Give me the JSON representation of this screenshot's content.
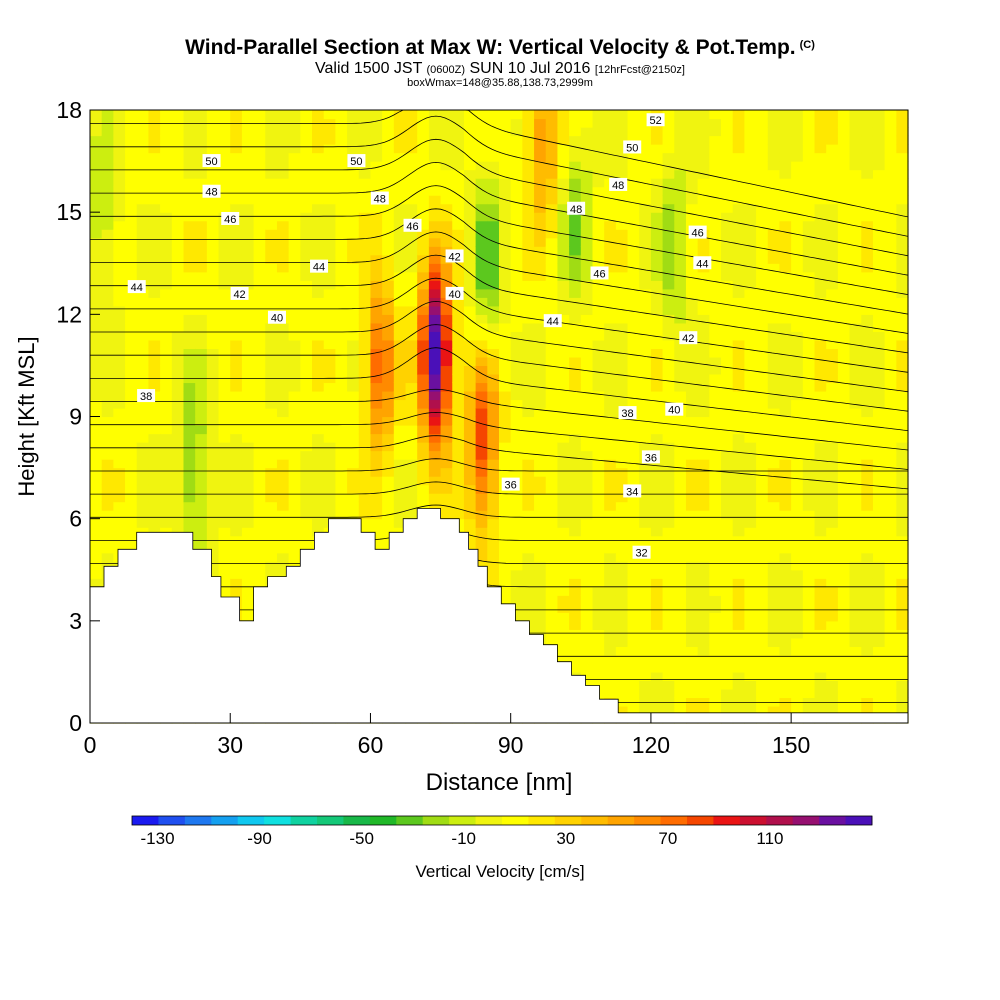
{
  "header": {
    "title": "Wind-Parallel Section at Max W: Vertical Velocity & Pot.Temp.",
    "copyright": "(C)",
    "valid_prefix": "Valid 1500 JST ",
    "valid_z": "(0600Z)",
    "valid_date": " SUN 10 Jul 2016 ",
    "fcst": "[12hrFcst@2150z]",
    "box_info": "boxWmax=148@35.88,138.73,2999m"
  },
  "chart_data": {
    "type": "heatmap",
    "title": "Wind-Parallel Section at Max W: Vertical Velocity & Pot.Temp.",
    "xlabel": "Distance [nm]",
    "ylabel": "Height [Kft MSL]",
    "xlim": [
      0,
      175
    ],
    "ylim": [
      0,
      18
    ],
    "x_ticks": [
      "0",
      "30",
      "60",
      "90",
      "120",
      "150"
    ],
    "x_tick_values": [
      0,
      30,
      60,
      90,
      120,
      150
    ],
    "y_ticks": [
      "0",
      "3",
      "6",
      "9",
      "12",
      "15",
      "18"
    ],
    "y_tick_values": [
      0,
      3,
      6,
      9,
      12,
      15,
      18
    ],
    "colorbar": {
      "label": "Vertical Velocity [cm/s]",
      "tick_labels": [
        "-130",
        "-90",
        "-50",
        "-10",
        "30",
        "70",
        "110"
      ],
      "tick_values": [
        -130,
        -90,
        -50,
        -10,
        30,
        70,
        110
      ],
      "range": [
        -140,
        150
      ],
      "colors": [
        "#1a1af0",
        "#1f4ff0",
        "#1e78f0",
        "#14a0f0",
        "#10c8f0",
        "#10e0e0",
        "#10d2a0",
        "#14c878",
        "#18b848",
        "#20b828",
        "#5cc81e",
        "#a0dc14",
        "#ccee10",
        "#f0f410",
        "#ffff00",
        "#ffe800",
        "#ffd200",
        "#ffbc00",
        "#ffa400",
        "#ff8a00",
        "#ff6c00",
        "#f54600",
        "#ea1414",
        "#cc1030",
        "#b0104c",
        "#961070",
        "#6a10a0",
        "#4a10b8"
      ]
    },
    "theta_contour_labels": [
      "50",
      "48",
      "46",
      "44",
      "42",
      "40",
      "38",
      "50",
      "48",
      "46",
      "44",
      "42",
      "40",
      "48",
      "46",
      "44",
      "38",
      "36",
      "34",
      "32",
      "40",
      "36",
      "42",
      "44",
      "46",
      "48",
      "50",
      "52"
    ],
    "w_maxima": [
      {
        "x": 74,
        "y": 10.8,
        "w": 148
      },
      {
        "x": 84,
        "y": 8.2,
        "w": 80
      },
      {
        "x": 62,
        "y": 10.5,
        "w": 70
      },
      {
        "x": 97,
        "y": 17.2,
        "w": 50
      }
    ],
    "w_minima": [
      {
        "x": 22,
        "y": 7.5,
        "w": -40
      },
      {
        "x": 85,
        "y": 13.5,
        "w": -40
      },
      {
        "x": 104,
        "y": 15.0,
        "w": -30
      },
      {
        "x": 125,
        "y": 14.0,
        "w": -30
      },
      {
        "x": 3,
        "y": 15.0,
        "w": -25
      }
    ],
    "terrain_kft": [
      [
        0,
        4.0
      ],
      [
        3,
        4.0
      ],
      [
        3,
        4.6
      ],
      [
        6,
        4.6
      ],
      [
        6,
        5.1
      ],
      [
        10,
        5.1
      ],
      [
        10,
        5.6
      ],
      [
        22,
        5.6
      ],
      [
        22,
        5.1
      ],
      [
        26,
        5.1
      ],
      [
        26,
        4.3
      ],
      [
        28,
        4.3
      ],
      [
        28,
        3.7
      ],
      [
        32,
        3.7
      ],
      [
        32,
        3.0
      ],
      [
        35,
        3.0
      ],
      [
        35,
        4.0
      ],
      [
        38,
        4.0
      ],
      [
        38,
        4.3
      ],
      [
        42,
        4.3
      ],
      [
        42,
        4.6
      ],
      [
        45,
        4.6
      ],
      [
        45,
        5.1
      ],
      [
        48,
        5.1
      ],
      [
        48,
        5.6
      ],
      [
        51,
        5.6
      ],
      [
        51,
        6.0
      ],
      [
        58,
        6.0
      ],
      [
        58,
        5.6
      ],
      [
        61,
        5.6
      ],
      [
        61,
        5.1
      ],
      [
        64,
        5.1
      ],
      [
        64,
        5.6
      ],
      [
        67,
        5.6
      ],
      [
        67,
        6.0
      ],
      [
        70,
        6.0
      ],
      [
        70,
        6.3
      ],
      [
        75,
        6.3
      ],
      [
        75,
        6.0
      ],
      [
        79,
        6.0
      ],
      [
        79,
        5.6
      ],
      [
        81,
        5.6
      ],
      [
        81,
        5.1
      ],
      [
        83,
        5.1
      ],
      [
        83,
        4.6
      ],
      [
        85,
        4.6
      ],
      [
        85,
        4.0
      ],
      [
        88,
        4.0
      ],
      [
        88,
        3.5
      ],
      [
        91,
        3.5
      ],
      [
        91,
        3.0
      ],
      [
        94,
        3.0
      ],
      [
        94,
        2.6
      ],
      [
        97,
        2.6
      ],
      [
        97,
        2.3
      ],
      [
        100,
        2.3
      ],
      [
        100,
        1.8
      ],
      [
        103,
        1.8
      ],
      [
        103,
        1.4
      ],
      [
        106,
        1.4
      ],
      [
        106,
        1.1
      ],
      [
        109,
        1.1
      ],
      [
        109,
        0.7
      ],
      [
        113,
        0.7
      ],
      [
        113,
        0.3
      ],
      [
        175,
        0.3
      ]
    ]
  }
}
